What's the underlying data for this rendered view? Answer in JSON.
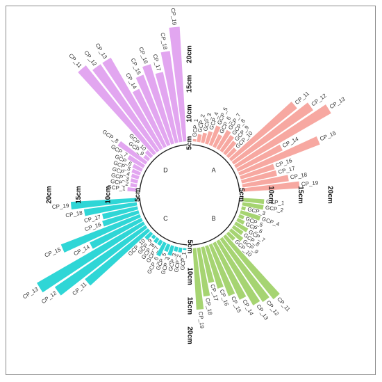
{
  "chart_data": {
    "type": "bar",
    "variant": "circular-barplot",
    "title": "",
    "xlabel": "",
    "ylabel": "",
    "scale_ticks": [
      "5cm",
      "10cm",
      "15cm",
      "20cm"
    ],
    "ylim": [
      0,
      20
    ],
    "colors": {
      "A": "#f7a8a1",
      "B": "#a6d472",
      "C": "#2fd6d6",
      "D": "#e2a6f0"
    },
    "groups": [
      {
        "name": "A",
        "bars": [
          {
            "label": "GCP_1",
            "value": 0.4
          },
          {
            "label": "GCP_2",
            "value": 1.3
          },
          {
            "label": "GCP_3",
            "value": 1.7
          },
          {
            "label": "GCP_4",
            "value": 2.2
          },
          {
            "label": "GCP_5",
            "value": 3.5
          },
          {
            "label": "GCP_6",
            "value": 2.3
          },
          {
            "label": "GCP_7",
            "value": 3.6
          },
          {
            "label": "GCP_8",
            "value": 3.2
          },
          {
            "label": "GCP_9",
            "value": 2.7
          },
          {
            "label": "GCP_10",
            "value": 1.9
          },
          {
            "label": "CP_11",
            "value": 14.3
          },
          {
            "label": "CP_12",
            "value": 16.3
          },
          {
            "label": "CP_13",
            "value": 18.6
          },
          {
            "label": "CP_14",
            "value": 8.4
          },
          {
            "label": "CP_15",
            "value": 14.6
          },
          {
            "label": "CP_16",
            "value": 6.0
          },
          {
            "label": "CP_17",
            "value": 6.1
          },
          {
            "label": "CP_18",
            "value": 7.9
          },
          {
            "label": "CP_19",
            "value": 9.6
          }
        ]
      },
      {
        "name": "B",
        "bars": [
          {
            "label": "GCP_1",
            "value": 3.6
          },
          {
            "label": "GCP_2",
            "value": 3.6
          },
          {
            "label": "GCP_3",
            "value": 0.7
          },
          {
            "label": "GCP_4",
            "value": 3.5
          },
          {
            "label": "GCP_5",
            "value": 0.9
          },
          {
            "label": "GCP_6",
            "value": 1.3
          },
          {
            "label": "GCP_7",
            "value": 2.4
          },
          {
            "label": "GCP_8",
            "value": 2.0
          },
          {
            "label": "GCP_9",
            "value": 2.6
          },
          {
            "label": "GCP_10",
            "value": 1.6
          },
          {
            "label": "CP_11",
            "value": 13.6
          },
          {
            "label": "CP_12",
            "value": 12.9
          },
          {
            "label": "CP_13",
            "value": 12.5
          },
          {
            "label": "CP_14",
            "value": 10.6
          },
          {
            "label": "CP_15",
            "value": 9.3
          },
          {
            "label": "CP_16",
            "value": 7.5
          },
          {
            "label": "CP_17",
            "value": 6.2
          },
          {
            "label": "CP_18",
            "value": 8.3
          },
          {
            "label": "CP_19",
            "value": 10.4
          }
        ]
      },
      {
        "name": "C",
        "bars": [
          {
            "label": "GCP_1",
            "value": 0.3
          },
          {
            "label": "GCP_2",
            "value": 0.8
          },
          {
            "label": "GCP_3",
            "value": 0.8
          },
          {
            "label": "GCP_4",
            "value": 1.7
          },
          {
            "label": "GCP_5",
            "value": 1.3
          },
          {
            "label": "GCP_6",
            "value": 2.5
          },
          {
            "label": "GCP_7",
            "value": 0.9
          },
          {
            "label": "GCP_8",
            "value": 0.9
          },
          {
            "label": "GCP_9",
            "value": 0.6
          },
          {
            "label": "GCP_10",
            "value": 1.4
          },
          {
            "label": "CP_11",
            "value": 13.7
          },
          {
            "label": "CP_12",
            "value": 18.6
          },
          {
            "label": "CP_13",
            "value": 20.8
          },
          {
            "label": "CP_14",
            "value": 9.7
          },
          {
            "label": "CP_15",
            "value": 14.3
          },
          {
            "label": "CP_16",
            "value": 6.4
          },
          {
            "label": "CP_17",
            "value": 6.1
          },
          {
            "label": "CP_18",
            "value": 9.0
          },
          {
            "label": "CP_19",
            "value": 11.1
          }
        ]
      },
      {
        "name": "D",
        "bars": [
          {
            "label": "GCP_1",
            "value": 1.5
          },
          {
            "label": "GCP_2",
            "value": 1.1
          },
          {
            "label": "GCP_3",
            "value": 1.2
          },
          {
            "label": "GCP_4",
            "value": 1.3
          },
          {
            "label": "GCP_5",
            "value": 1.5
          },
          {
            "label": "GCP_6",
            "value": 1.7
          },
          {
            "label": "GCP_7",
            "value": 3.1
          },
          {
            "label": "GCP_8",
            "value": 5.7
          },
          {
            "label": "GCP_9",
            "value": 1.0
          },
          {
            "label": "GCP_10",
            "value": 1.3
          },
          {
            "label": "CP_11",
            "value": 19.0
          },
          {
            "label": "CP_12",
            "value": 17.7
          },
          {
            "label": "CP_13",
            "value": 17.7
          },
          {
            "label": "CP_14",
            "value": 10.8
          },
          {
            "label": "CP_15",
            "value": 12.7
          },
          {
            "label": "CP_16",
            "value": 14.0
          },
          {
            "label": "CP_17",
            "value": 12.2
          },
          {
            "label": "CP_18",
            "value": 15.5
          },
          {
            "label": "CP_19",
            "value": 19.4
          }
        ]
      }
    ]
  }
}
